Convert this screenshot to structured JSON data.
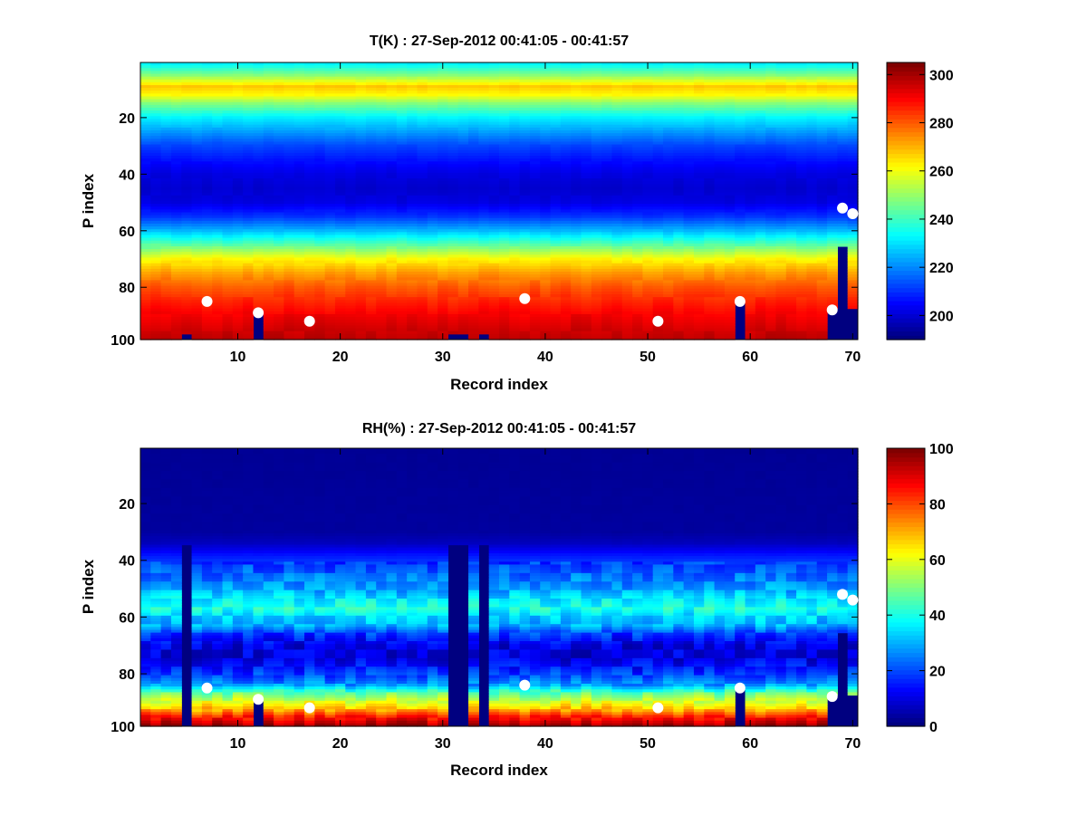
{
  "figure": {
    "background": "#ffffff"
  },
  "chart_data": [
    {
      "type": "heatmap",
      "title": "T(K) : 27-Sep-2012 00:41:05 - 00:41:57",
      "xlabel": "Record index",
      "ylabel": "P index",
      "xlim": [
        0.5,
        70.5
      ],
      "ylim": [
        0.5,
        98.5
      ],
      "y_reversed": true,
      "xticks": [
        10,
        20,
        30,
        40,
        50,
        60,
        70
      ],
      "yticks": [
        20,
        40,
        60,
        80,
        100
      ],
      "colormap": "jet",
      "clim": [
        190,
        305
      ],
      "colorbar_ticks": [
        200,
        220,
        240,
        260,
        280,
        300
      ],
      "fill_value": 190,
      "profile_levels": [
        [
          1,
          232
        ],
        [
          5,
          248
        ],
        [
          9,
          268
        ],
        [
          12,
          262
        ],
        [
          15,
          248
        ],
        [
          20,
          232
        ],
        [
          25,
          222
        ],
        [
          30,
          212
        ],
        [
          35,
          206
        ],
        [
          40,
          201
        ],
        [
          45,
          199
        ],
        [
          50,
          201
        ],
        [
          55,
          210
        ],
        [
          60,
          225
        ],
        [
          65,
          243
        ],
        [
          70,
          262
        ],
        [
          75,
          273
        ],
        [
          80,
          281
        ],
        [
          85,
          287
        ],
        [
          90,
          292
        ],
        [
          95,
          296
        ],
        [
          98,
          298
        ]
      ],
      "missing_records": [
        5,
        31,
        32,
        34
      ],
      "missing_from_level": 97,
      "surface_cut": [
        {
          "record": 12,
          "from_level": 89
        },
        {
          "record": 59,
          "from_level": 85
        },
        {
          "record": 68,
          "from_level": 88
        },
        {
          "record": 69,
          "from_level": 66
        },
        {
          "record": 70,
          "from_level": 88
        }
      ],
      "markers": [
        {
          "record": 7,
          "level": 85
        },
        {
          "record": 12,
          "level": 89
        },
        {
          "record": 17,
          "level": 92
        },
        {
          "record": 38,
          "level": 84
        },
        {
          "record": 51,
          "level": 92
        },
        {
          "record": 59,
          "level": 85
        },
        {
          "record": 68,
          "level": 88
        },
        {
          "record": 69,
          "level": 52
        },
        {
          "record": 70,
          "level": 54
        }
      ]
    },
    {
      "type": "heatmap",
      "title": "RH(%) : 27-Sep-2012 00:41:05 - 00:41:57",
      "xlabel": "Record index",
      "ylabel": "P index",
      "xlim": [
        0.5,
        70.5
      ],
      "ylim": [
        0.5,
        98.5
      ],
      "y_reversed": true,
      "xticks": [
        10,
        20,
        30,
        40,
        50,
        60,
        70
      ],
      "yticks": [
        20,
        40,
        60,
        80,
        100
      ],
      "colormap": "jet",
      "clim": [
        0,
        100
      ],
      "colorbar_ticks": [
        0,
        20,
        40,
        60,
        80,
        100
      ],
      "fill_value": 0,
      "profile_levels": [
        [
          1,
          2
        ],
        [
          30,
          3
        ],
        [
          34,
          6
        ],
        [
          38,
          14
        ],
        [
          42,
          20
        ],
        [
          46,
          24
        ],
        [
          50,
          28
        ],
        [
          54,
          36
        ],
        [
          57,
          40
        ],
        [
          60,
          33
        ],
        [
          63,
          30
        ],
        [
          66,
          18
        ],
        [
          70,
          10
        ],
        [
          74,
          9
        ],
        [
          78,
          14
        ],
        [
          81,
          20
        ],
        [
          84,
          28
        ],
        [
          87,
          48
        ],
        [
          90,
          60
        ],
        [
          93,
          72
        ],
        [
          95,
          84
        ],
        [
          97,
          92
        ],
        [
          98,
          96
        ]
      ],
      "missing_records": [
        5,
        31,
        32,
        34
      ],
      "missing_from_level": 35,
      "surface_cut": [
        {
          "record": 12,
          "from_level": 89
        },
        {
          "record": 59,
          "from_level": 85
        },
        {
          "record": 68,
          "from_level": 88
        },
        {
          "record": 69,
          "from_level": 66
        },
        {
          "record": 70,
          "from_level": 88
        }
      ],
      "markers": [
        {
          "record": 7,
          "level": 85
        },
        {
          "record": 12,
          "level": 89
        },
        {
          "record": 17,
          "level": 92
        },
        {
          "record": 38,
          "level": 84
        },
        {
          "record": 51,
          "level": 92
        },
        {
          "record": 59,
          "level": 85
        },
        {
          "record": 68,
          "level": 88
        },
        {
          "record": 69,
          "level": 52
        },
        {
          "record": 70,
          "level": 54
        }
      ]
    }
  ]
}
